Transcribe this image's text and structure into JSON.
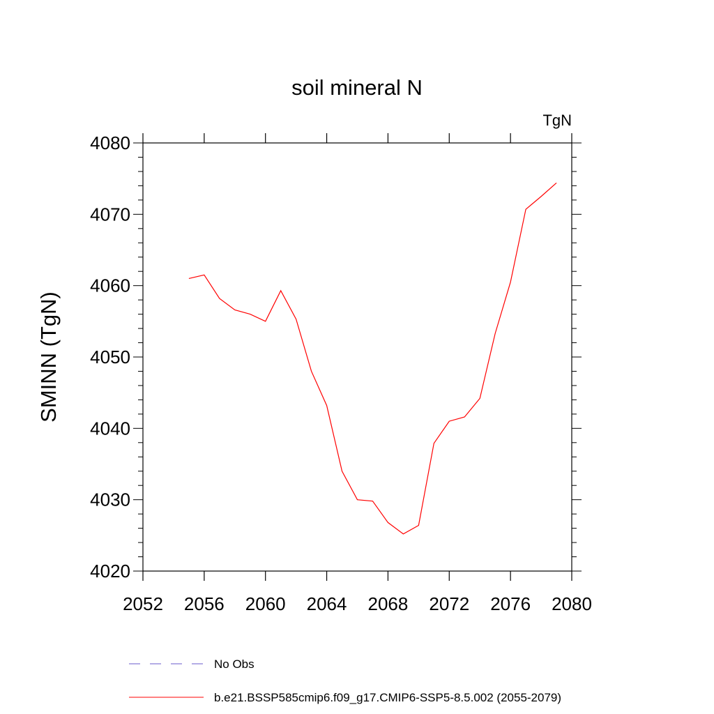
{
  "chart_data": {
    "type": "line",
    "title": "soil mineral N",
    "units": "TgN",
    "ylabel": "SMINN  (TgN)",
    "xlabel": "",
    "xlim": [
      2052,
      2080
    ],
    "ylim": [
      4020,
      4080
    ],
    "xticks": [
      2052,
      2056,
      2060,
      2064,
      2068,
      2072,
      2076,
      2080
    ],
    "yticks": [
      4020,
      4030,
      4040,
      4050,
      4060,
      4070,
      4080
    ],
    "grid": false,
    "legend_placement": "bottom",
    "series": [
      {
        "name": "b.e21.BSSP585cmip6.f09_g17.CMIP6-SSP5-8.5.002 (2055-2079)",
        "color": "#ff0000",
        "style": "solid",
        "x": [
          2055,
          2056,
          2057,
          2058,
          2059,
          2060,
          2061,
          2062,
          2063,
          2064,
          2065,
          2066,
          2067,
          2068,
          2069,
          2070,
          2071,
          2072,
          2073,
          2074,
          2075,
          2076,
          2077,
          2078,
          2079
        ],
        "y": [
          4061.0,
          4061.5,
          4058.2,
          4056.6,
          4056.0,
          4055.0,
          4059.3,
          4055.3,
          4048.0,
          4043.2,
          4034.0,
          4030.0,
          4029.8,
          4026.8,
          4025.2,
          4026.4,
          4037.9,
          4041.0,
          4041.6,
          4044.2,
          4053.3,
          4060.5,
          4070.7,
          4072.5,
          4074.4
        ]
      }
    ],
    "legend": [
      {
        "label": "No Obs",
        "color": "#6a5acd",
        "style": "dashed"
      },
      {
        "label": "b.e21.BSSP585cmip6.f09_g17.CMIP6-SSP5-8.5.002 (2055-2079)",
        "color": "#ff0000",
        "style": "solid"
      }
    ]
  }
}
